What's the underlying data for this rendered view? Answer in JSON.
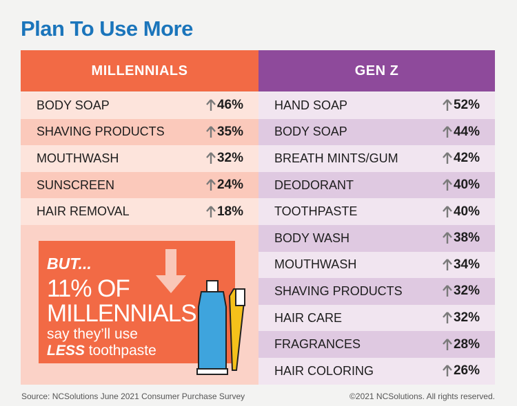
{
  "title": "Plan To Use More",
  "millennials": {
    "heading": "MILLENNIALS",
    "rows": [
      {
        "item": "BODY SOAP",
        "value": "46%"
      },
      {
        "item": "SHAVING PRODUCTS",
        "value": "35%"
      },
      {
        "item": "MOUTHWASH",
        "value": "32%"
      },
      {
        "item": "SUNSCREEN",
        "value": "24%"
      },
      {
        "item": "HAIR REMOVAL",
        "value": "18%"
      }
    ]
  },
  "genz": {
    "heading": "GEN Z",
    "rows": [
      {
        "item": "HAND SOAP",
        "value": "52%"
      },
      {
        "item": "BODY SOAP",
        "value": "44%"
      },
      {
        "item": "BREATH MINTS/GUM",
        "value": "42%"
      },
      {
        "item": "DEODORANT",
        "value": "40%"
      },
      {
        "item": "TOOTHPASTE",
        "value": "40%"
      },
      {
        "item": "BODY WASH",
        "value": "38%"
      },
      {
        "item": "MOUTHWASH",
        "value": "34%"
      },
      {
        "item": "SHAVING PRODUCTS",
        "value": "32%"
      },
      {
        "item": "HAIR CARE",
        "value": "32%"
      },
      {
        "item": "FRAGRANCES",
        "value": "28%"
      },
      {
        "item": "HAIR COLORING",
        "value": "26%"
      }
    ]
  },
  "callout": {
    "lead": "BUT...",
    "line1": "11% OF",
    "line2": "MILLENNIALS",
    "line3": "say they’ll use",
    "emphasis": "LESS",
    "line4": "toothpaste"
  },
  "footer": {
    "source": "Source: NCSolutions June 2021 Consumer Purchase Survey",
    "copyright": "©2021 NCSolutions. All rights reserved."
  }
}
